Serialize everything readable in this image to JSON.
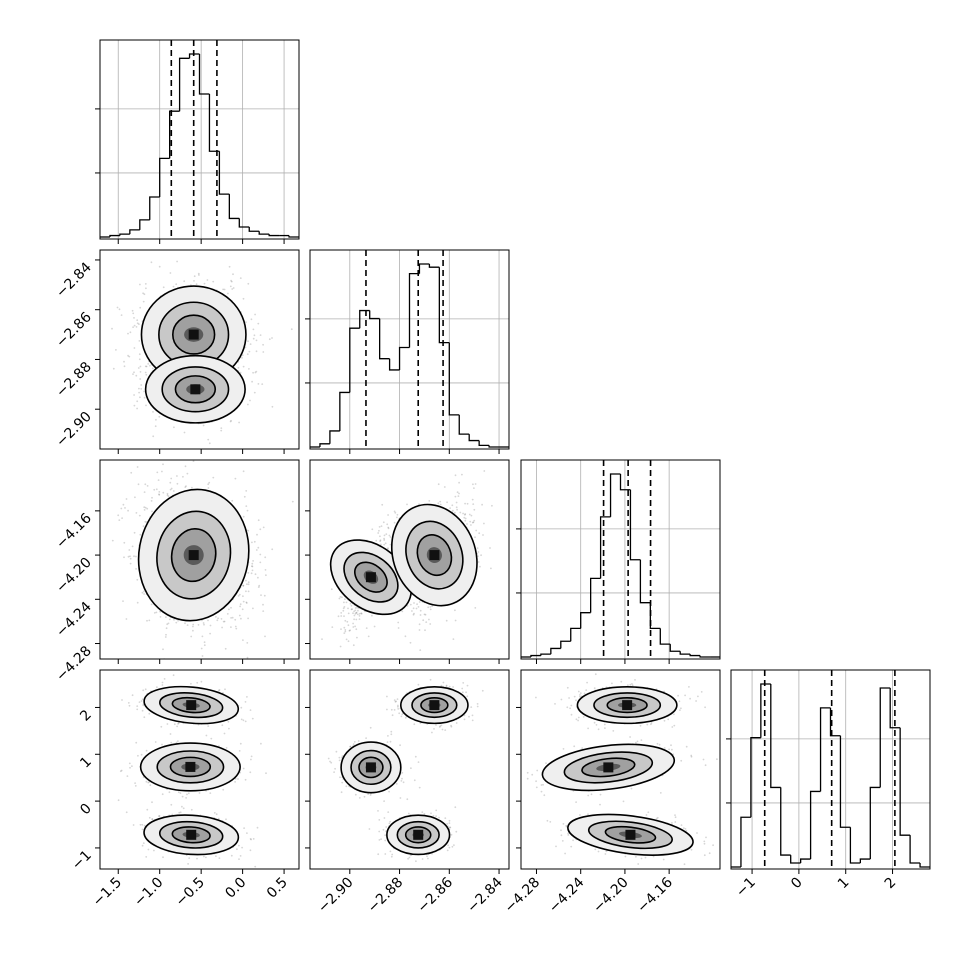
{
  "chart_data": {
    "type": "corner",
    "params": [
      {
        "range": [
          -1.72,
          0.68
        ],
        "ticks": [
          -1.5,
          -1.0,
          -0.5,
          0.0,
          0.5
        ],
        "tick_labels": [
          "−1.5",
          "−1.0",
          "−0.5",
          "0.0",
          "0.5"
        ],
        "quantiles": [
          -0.86,
          -0.59,
          -0.31
        ],
        "hist": {
          "start": -1.72,
          "step": 0.12,
          "counts": [
            0,
            1,
            2,
            5,
            12,
            28,
            55,
            88,
            125,
            128,
            100,
            60,
            30,
            13,
            7,
            4,
            2,
            1,
            1,
            0
          ]
        }
      },
      {
        "range": [
          -2.916,
          -2.836
        ],
        "ticks": [
          -2.9,
          -2.88,
          -2.86,
          -2.84
        ],
        "tick_labels": [
          "−2.90",
          "−2.88",
          "−2.86",
          "−2.84"
        ],
        "quantiles": [
          -2.8935,
          -2.8725,
          -2.8625
        ],
        "hist": {
          "start": -2.916,
          "step": 0.004,
          "counts": [
            0,
            2,
            10,
            34,
            74,
            85,
            80,
            55,
            48,
            62,
            108,
            114,
            112,
            65,
            20,
            8,
            4,
            1,
            0,
            0
          ]
        }
      },
      {
        "range": [
          -4.294,
          -4.114
        ],
        "ticks": [
          -4.28,
          -4.24,
          -4.2,
          -4.16
        ],
        "tick_labels": [
          "−4.28",
          "−4.24",
          "−4.20",
          "−4.16"
        ],
        "quantiles": [
          -4.2193,
          -4.1971,
          -4.1768
        ],
        "hist": {
          "start": -4.294,
          "step": 0.009,
          "counts": [
            0,
            1,
            2,
            6,
            11,
            20,
            31,
            55,
            98,
            128,
            117,
            68,
            38,
            20,
            9,
            4,
            2,
            1,
            0,
            0
          ]
        }
      },
      {
        "range": [
          -1.45,
          2.8
        ],
        "ticks": [
          -1,
          0,
          1,
          2
        ],
        "tick_labels": [
          "−1",
          "0",
          "1",
          "2"
        ],
        "quantiles": [
          -0.73,
          0.7,
          2.05
        ],
        "hist": {
          "start": -1.45,
          "step": 0.2125,
          "counts": [
            0,
            25,
            65,
            92,
            40,
            6,
            2,
            4,
            38,
            80,
            66,
            20,
            2,
            4,
            40,
            90,
            70,
            16,
            2,
            0
          ]
        }
      }
    ],
    "pairs": [
      {
        "row": 1,
        "col": 0,
        "components": [
          {
            "mean": [
              -0.59,
              -2.87
            ],
            "sd": [
              0.21,
              0.0065
            ],
            "rho": 0.0,
            "weight": 0.72
          },
          {
            "mean": [
              -0.57,
              -2.892
            ],
            "sd": [
              0.2,
              0.0045
            ],
            "rho": 0.0,
            "weight": 0.28
          }
        ]
      },
      {
        "row": 2,
        "col": 0,
        "components": [
          {
            "mean": [
              -0.59,
              -4.2
            ],
            "sd": [
              0.22,
              0.02
            ],
            "rho": -0.15,
            "weight": 1.0
          }
        ]
      },
      {
        "row": 2,
        "col": 1,
        "components": [
          {
            "mean": [
              -2.8915,
              -4.22
            ],
            "sd": [
              0.0042,
              0.016
            ],
            "rho": 0.75,
            "weight": 0.3
          },
          {
            "mean": [
              -2.866,
              -4.2
            ],
            "sd": [
              0.0055,
              0.016
            ],
            "rho": 0.3,
            "weight": 0.7
          }
        ]
      },
      {
        "row": 3,
        "col": 0,
        "components": [
          {
            "mean": [
              -0.62,
              2.05
            ],
            "sd": [
              0.19,
              0.13
            ],
            "rho": -0.25,
            "weight": 0.34
          },
          {
            "mean": [
              -0.63,
              0.73
            ],
            "sd": [
              0.2,
              0.17
            ],
            "rho": 0.0,
            "weight": 0.33
          },
          {
            "mean": [
              -0.62,
              -0.72
            ],
            "sd": [
              0.19,
              0.14
            ],
            "rho": -0.15,
            "weight": 0.33
          }
        ]
      },
      {
        "row": 3,
        "col": 1,
        "components": [
          {
            "mean": [
              -2.866,
              2.05
            ],
            "sd": [
              0.0045,
              0.13
            ],
            "rho": 0.0,
            "weight": 0.34
          },
          {
            "mean": [
              -2.8915,
              0.72
            ],
            "sd": [
              0.004,
              0.18
            ],
            "rho": 0.0,
            "weight": 0.33
          },
          {
            "mean": [
              -2.8725,
              -0.72
            ],
            "sd": [
              0.0042,
              0.14
            ],
            "rho": 0.0,
            "weight": 0.33
          }
        ]
      },
      {
        "row": 3,
        "col": 2,
        "components": [
          {
            "mean": [
              -4.198,
              2.05
            ],
            "sd": [
              0.015,
              0.13
            ],
            "rho": 0.0,
            "weight": 0.34
          },
          {
            "mean": [
              -4.215,
              0.72
            ],
            "sd": [
              0.02,
              0.16
            ],
            "rho": 0.35,
            "weight": 0.33
          },
          {
            "mean": [
              -4.195,
              -0.72
            ],
            "sd": [
              0.019,
              0.14
            ],
            "rho": -0.4,
            "weight": 0.33
          }
        ]
      }
    ],
    "contour_levels": [
      1.2,
      2.0,
      3.0
    ],
    "grid": true,
    "colors": {
      "line": "#000000",
      "grid": "#b0b0b0",
      "points": "#444444",
      "fill": "#d9d9d9"
    }
  }
}
